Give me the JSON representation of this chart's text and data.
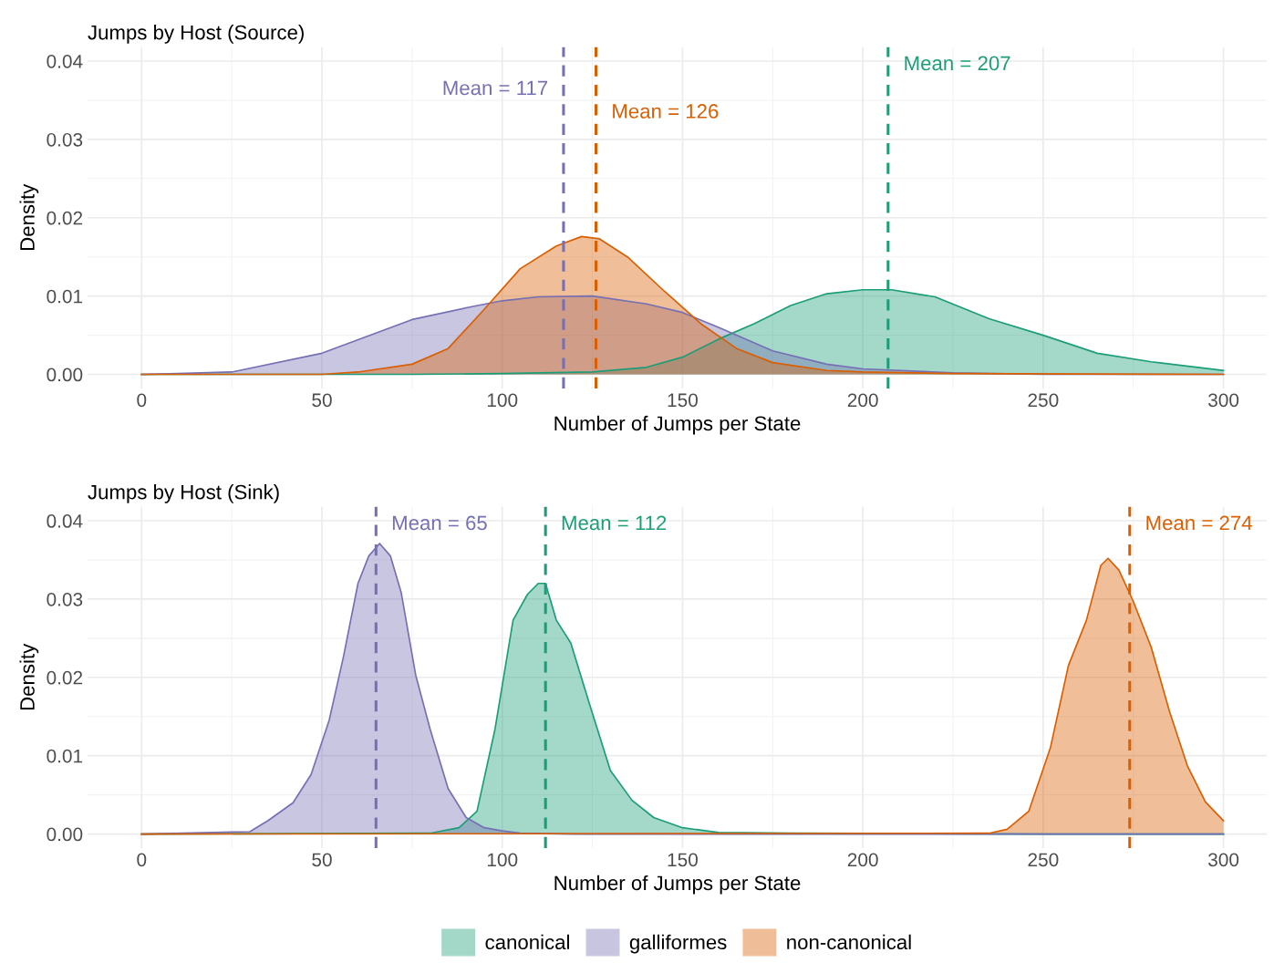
{
  "chart_data": [
    {
      "type": "area",
      "title": "Jumps by Host (Source)",
      "xlabel": "Number of Jumps per State",
      "ylabel": "Density",
      "xlim": [
        -15,
        312
      ],
      "ylim": [
        -0.0018,
        0.0418
      ],
      "xticks": [
        0,
        50,
        100,
        150,
        200,
        250,
        300
      ],
      "yticks": [
        {
          "value": 0,
          "label": "0.00"
        },
        {
          "value": 0.01,
          "label": "0.01"
        },
        {
          "value": 0.02,
          "label": "0.02"
        },
        {
          "value": 0.03,
          "label": "0.03"
        },
        {
          "value": 0.04,
          "label": "0.04"
        }
      ],
      "grid": true,
      "legend": false,
      "series": [
        {
          "color": "#1b9e77",
          "x": [
            0,
            75,
            100,
            125,
            140,
            150,
            160,
            170,
            180,
            190,
            200,
            208,
            220,
            235,
            250,
            265,
            280,
            300
          ],
          "values": [
            0,
            0,
            0.0001,
            0.0003,
            0.0009,
            0.0022,
            0.0045,
            0.0065,
            0.0088,
            0.0103,
            0.0108,
            0.0108,
            0.0099,
            0.0071,
            0.005,
            0.0027,
            0.0016,
            0.0005
          ]
        },
        {
          "color": "#7570b3",
          "x": [
            0,
            10,
            25,
            50,
            75,
            90,
            100,
            110,
            125,
            140,
            150,
            160,
            175,
            190,
            200,
            225,
            250,
            300
          ],
          "values": [
            0,
            0.0001,
            0.0003,
            0.0027,
            0.007,
            0.0085,
            0.0094,
            0.0099,
            0.01,
            0.009,
            0.0079,
            0.006,
            0.003,
            0.0013,
            0.0007,
            0.0002,
            0,
            0
          ]
        },
        {
          "color": "#d95f02",
          "x": [
            0,
            50,
            60,
            75,
            85,
            95,
            105,
            115,
            122,
            127,
            135,
            145,
            155,
            165,
            175,
            190,
            200,
            225,
            300
          ],
          "values": [
            0,
            0,
            0.0003,
            0.0013,
            0.0033,
            0.0083,
            0.0135,
            0.0164,
            0.0176,
            0.0173,
            0.0149,
            0.0106,
            0.0065,
            0.0033,
            0.0015,
            0.0005,
            0.0003,
            0.0001,
            0
          ]
        }
      ],
      "ref_lines": [
        {
          "axis": "x",
          "value": 207,
          "label": "Mean = 207",
          "color": "#1b9e77",
          "line_style": "dashed"
        },
        {
          "axis": "x",
          "value": 117,
          "label": "Mean = 117",
          "color": "#7570b3",
          "line_style": "dashed"
        },
        {
          "axis": "x",
          "value": 126,
          "label": "Mean = 126",
          "color": "#d95f02",
          "line_style": "dashed"
        }
      ]
    },
    {
      "type": "area",
      "title": "Jumps by Host (Sink)",
      "xlabel": "Number of Jumps per State",
      "ylabel": "Density",
      "xlim": [
        -15,
        312
      ],
      "ylim": [
        -0.0018,
        0.0418
      ],
      "xticks": [
        0,
        50,
        100,
        150,
        200,
        250,
        300
      ],
      "yticks": [
        {
          "value": 0,
          "label": "0.00"
        },
        {
          "value": 0.01,
          "label": "0.01"
        },
        {
          "value": 0.02,
          "label": "0.02"
        },
        {
          "value": 0.03,
          "label": "0.03"
        },
        {
          "value": 0.04,
          "label": "0.04"
        }
      ],
      "grid": true,
      "legend": "bottom",
      "series": [
        {
          "name": "canonical",
          "color": "#1b9e77",
          "x": [
            0,
            80,
            88,
            93,
            98,
            103,
            107,
            110,
            112,
            115,
            119,
            124,
            130,
            136,
            142,
            150,
            160,
            180,
            250,
            300
          ],
          "values": [
            0,
            0.0001,
            0.0008,
            0.0029,
            0.0134,
            0.0273,
            0.0306,
            0.032,
            0.032,
            0.0273,
            0.0244,
            0.0169,
            0.0081,
            0.0043,
            0.0021,
            0.0008,
            0.0002,
            0.0001,
            0,
            0
          ]
        },
        {
          "name": "galliformes",
          "color": "#7570b3",
          "x": [
            0,
            20,
            30,
            35,
            42,
            47,
            52,
            56,
            60,
            63,
            66,
            69,
            72,
            76,
            80,
            85,
            90,
            95,
            100,
            105,
            120,
            300
          ],
          "values": [
            0,
            0.0002,
            0.0003,
            0.0017,
            0.004,
            0.0076,
            0.0145,
            0.0227,
            0.032,
            0.0355,
            0.0371,
            0.0355,
            0.0308,
            0.0203,
            0.0134,
            0.0058,
            0.0021,
            0.0008,
            0.0004,
            0.0001,
            0,
            0
          ]
        },
        {
          "name": "non-canonical",
          "color": "#d95f02",
          "x": [
            0,
            235,
            240,
            246,
            252,
            257,
            262,
            266,
            268,
            271,
            275,
            280,
            285,
            290,
            295,
            300
          ],
          "values": [
            0,
            0.0001,
            0.0006,
            0.0029,
            0.011,
            0.0215,
            0.0273,
            0.0343,
            0.0352,
            0.0337,
            0.0297,
            0.0238,
            0.0157,
            0.0087,
            0.0041,
            0.0017
          ]
        }
      ],
      "ref_lines": [
        {
          "axis": "x",
          "value": 65,
          "label": "Mean = 65",
          "color": "#7570b3",
          "line_style": "dashed"
        },
        {
          "axis": "x",
          "value": 112,
          "label": "Mean = 112",
          "color": "#1b9e77",
          "line_style": "dashed"
        },
        {
          "axis": "x",
          "value": 274,
          "label": "Mean = 274",
          "color": "#d95f02",
          "line_style": "dashed"
        }
      ]
    }
  ]
}
